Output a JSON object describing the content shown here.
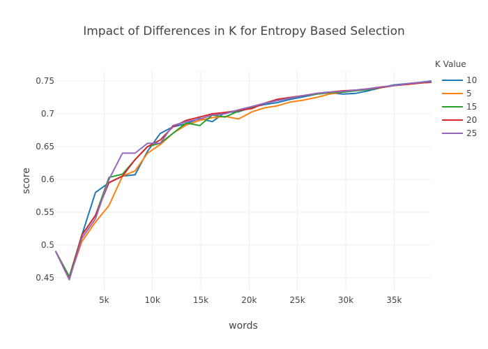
{
  "chart_data": {
    "type": "line",
    "title": "Impact of Differences in K for Entropy Based Selection",
    "xlabel": "words",
    "ylabel": "score",
    "xlim": [
      0,
      38800
    ],
    "ylim": [
      0.433,
      0.767
    ],
    "x_ticks": [
      {
        "value": 5000,
        "label": "5k"
      },
      {
        "value": 10000,
        "label": "10k"
      },
      {
        "value": 15000,
        "label": "15k"
      },
      {
        "value": 20000,
        "label": "20k"
      },
      {
        "value": 25000,
        "label": "25k"
      },
      {
        "value": 30000,
        "label": "30k"
      },
      {
        "value": 35000,
        "label": "35k"
      }
    ],
    "y_ticks": [
      {
        "value": 0.45,
        "label": "0.45"
      },
      {
        "value": 0.5,
        "label": "0.5"
      },
      {
        "value": 0.55,
        "label": "0.55"
      },
      {
        "value": 0.6,
        "label": "0.6"
      },
      {
        "value": 0.65,
        "label": "0.65"
      },
      {
        "value": 0.7,
        "label": "0.7"
      },
      {
        "value": 0.75,
        "label": "0.75"
      }
    ],
    "grid": true,
    "legend": {
      "title": "K Value",
      "position": "right"
    },
    "x": [
      0,
      1400,
      2700,
      4100,
      5500,
      6900,
      8200,
      9500,
      10800,
      12100,
      13500,
      14900,
      16200,
      17500,
      18900,
      20300,
      21600,
      22900,
      24300,
      25700,
      27000,
      28300,
      29700,
      31000,
      32300,
      33700,
      35000,
      36400,
      37800,
      38800
    ],
    "series": [
      {
        "name": "10",
        "color": "#1f77b4",
        "values": [
          0.49,
          0.45,
          0.515,
          0.58,
          0.595,
          0.605,
          0.607,
          0.643,
          0.67,
          0.68,
          0.685,
          0.693,
          0.688,
          0.702,
          0.703,
          0.71,
          0.714,
          0.717,
          0.722,
          0.726,
          0.73,
          0.732,
          0.73,
          0.731,
          0.735,
          0.74,
          0.744,
          0.746,
          0.748,
          0.75
        ]
      },
      {
        "name": "5",
        "color": "#ff7f0e",
        "values": [
          0.49,
          0.45,
          0.505,
          0.535,
          0.56,
          0.605,
          0.613,
          0.64,
          0.653,
          0.67,
          0.683,
          0.69,
          0.694,
          0.696,
          0.692,
          0.703,
          0.709,
          0.712,
          0.718,
          0.721,
          0.725,
          0.73,
          0.733,
          0.736,
          0.738,
          0.741,
          0.743,
          0.745,
          0.747,
          0.748
        ]
      },
      {
        "name": "15",
        "color": "#2ca02c",
        "values": [
          0.49,
          0.452,
          0.515,
          0.545,
          0.603,
          0.608,
          0.63,
          0.65,
          0.655,
          0.67,
          0.686,
          0.682,
          0.698,
          0.695,
          0.704,
          0.71,
          0.716,
          0.72,
          0.724,
          0.728,
          0.73,
          0.732,
          0.733,
          0.735,
          0.737,
          0.74,
          0.743,
          0.745,
          0.747,
          0.748
        ]
      },
      {
        "name": "20",
        "color": "#d62728",
        "values": [
          0.49,
          0.448,
          0.515,
          0.545,
          0.595,
          0.605,
          0.63,
          0.65,
          0.66,
          0.68,
          0.69,
          0.695,
          0.7,
          0.702,
          0.705,
          0.708,
          0.716,
          0.722,
          0.725,
          0.728,
          0.731,
          0.733,
          0.735,
          0.736,
          0.738,
          0.74,
          0.743,
          0.745,
          0.747,
          0.748
        ]
      },
      {
        "name": "25",
        "color": "#9467bd",
        "values": [
          0.49,
          0.447,
          0.51,
          0.54,
          0.6,
          0.64,
          0.64,
          0.655,
          0.655,
          0.682,
          0.688,
          0.692,
          0.698,
          0.7,
          0.706,
          0.711,
          0.716,
          0.72,
          0.724,
          0.728,
          0.731,
          0.733,
          0.734,
          0.736,
          0.738,
          0.741,
          0.743,
          0.746,
          0.748,
          0.749
        ]
      }
    ]
  }
}
